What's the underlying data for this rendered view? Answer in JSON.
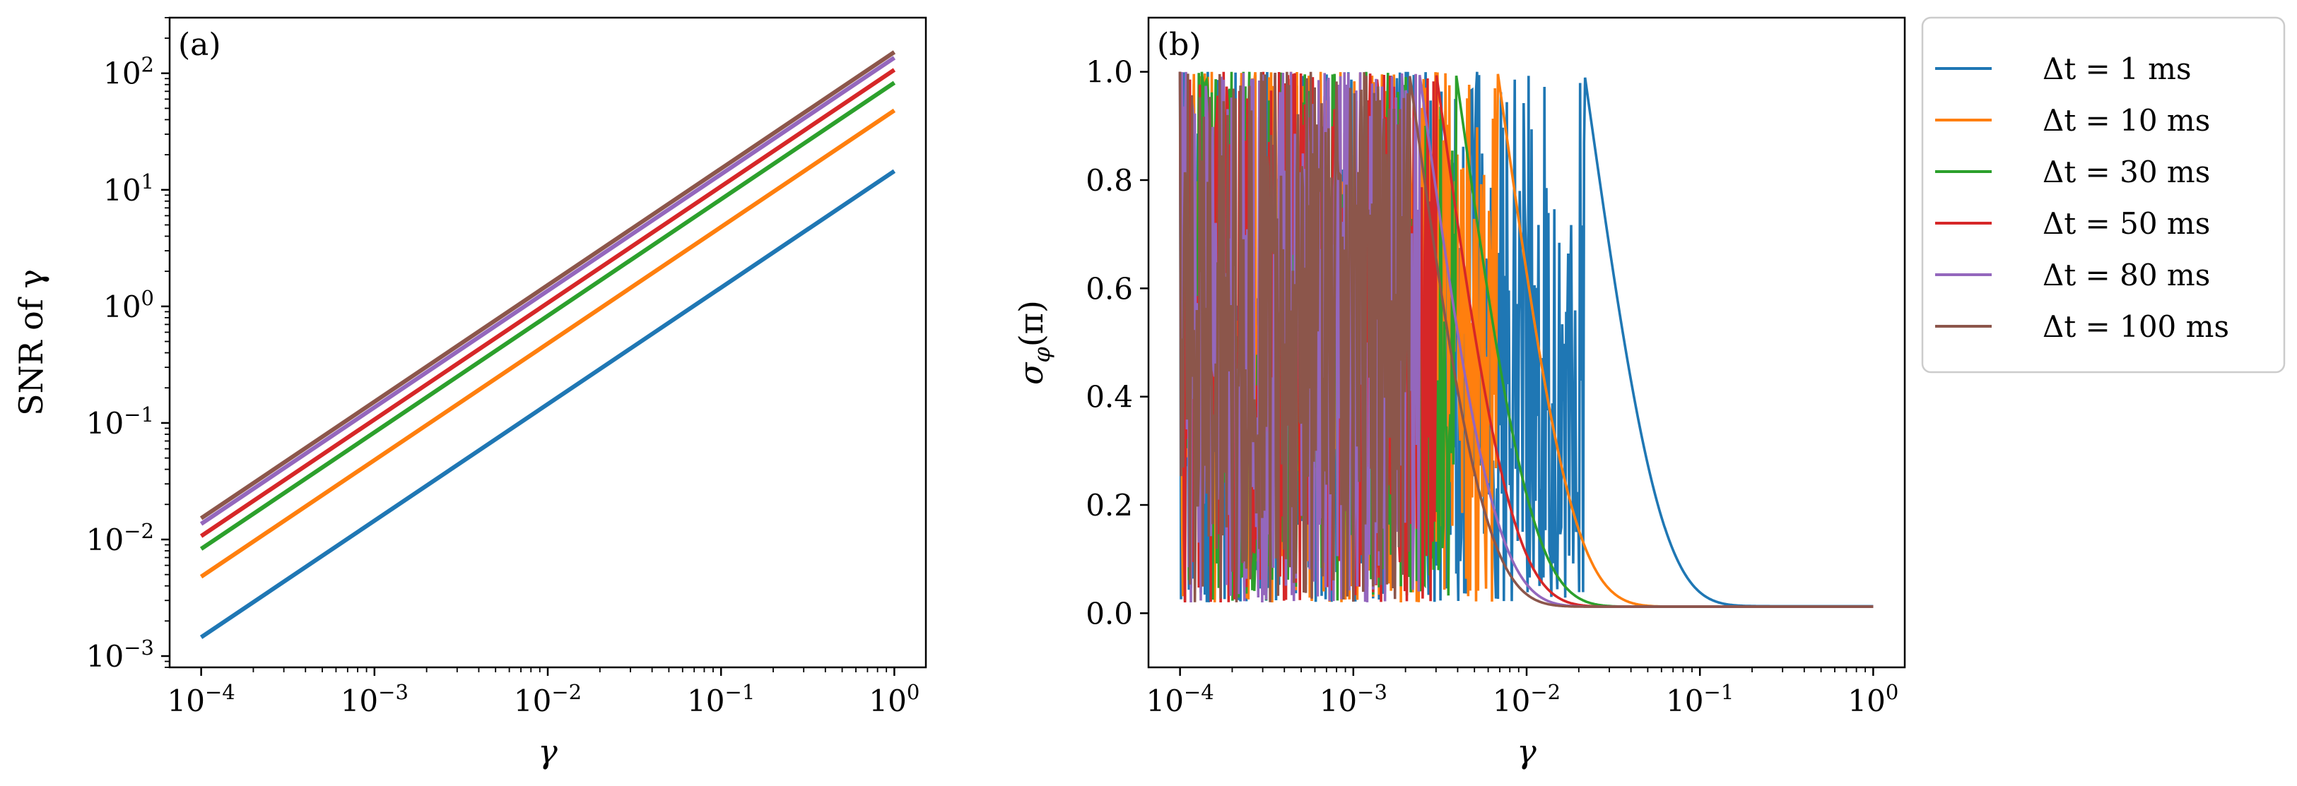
{
  "figure": {
    "colors": [
      "#1f77b4",
      "#ff7f0e",
      "#2ca02c",
      "#d62728",
      "#9467bd",
      "#8c564b"
    ]
  },
  "legend": {
    "items": [
      {
        "label": "Δt = 1 ms",
        "color": "#1f77b4"
      },
      {
        "label": "Δt = 10 ms",
        "color": "#ff7f0e"
      },
      {
        "label": "Δt = 30 ms",
        "color": "#2ca02c"
      },
      {
        "label": "Δt = 50 ms",
        "color": "#d62728"
      },
      {
        "label": "Δt = 80 ms",
        "color": "#9467bd"
      },
      {
        "label": "Δt = 100 ms",
        "color": "#8c564b"
      }
    ]
  },
  "chart_data": [
    {
      "panel": "(a)",
      "type": "line",
      "xscale": "log",
      "yscale": "log",
      "xlabel": "γ",
      "ylabel": "SNR of γ",
      "xlim": [
        0.0001,
        1
      ],
      "ylim": [
        0.0008,
        300
      ],
      "xticks": [
        {
          "base": "10",
          "exp": "−4",
          "value": 0.0001
        },
        {
          "base": "10",
          "exp": "−3",
          "value": 0.001
        },
        {
          "base": "10",
          "exp": "−2",
          "value": 0.01
        },
        {
          "base": "10",
          "exp": "−1",
          "value": 0.1
        },
        {
          "base": "10",
          "exp": "0",
          "value": 1
        }
      ],
      "yticks": [
        {
          "base": "10",
          "exp": "−3",
          "value": 0.001
        },
        {
          "base": "10",
          "exp": "−2",
          "value": 0.01
        },
        {
          "base": "10",
          "exp": "−1",
          "value": 0.1
        },
        {
          "base": "10",
          "exp": "0",
          "value": 1
        },
        {
          "base": "10",
          "exp": "1",
          "value": 10
        },
        {
          "base": "10",
          "exp": "2",
          "value": 100
        }
      ],
      "series": [
        {
          "name": "Δt = 1 ms",
          "x": [
            0.0001,
            1
          ],
          "y": [
            0.00145,
            14.5
          ]
        },
        {
          "name": "Δt = 10 ms",
          "x": [
            0.0001,
            1
          ],
          "y": [
            0.0048,
            48
          ]
        },
        {
          "name": "Δt = 30 ms",
          "x": [
            0.0001,
            1
          ],
          "y": [
            0.0083,
            83
          ]
        },
        {
          "name": "Δt = 50 ms",
          "x": [
            0.0001,
            1
          ],
          "y": [
            0.0107,
            107
          ]
        },
        {
          "name": "Δt = 80 ms",
          "x": [
            0.0001,
            1
          ],
          "y": [
            0.0136,
            136
          ]
        },
        {
          "name": "Δt = 100 ms",
          "x": [
            0.0001,
            1
          ],
          "y": [
            0.0152,
            152
          ]
        }
      ]
    },
    {
      "panel": "(b)",
      "type": "line",
      "xscale": "log",
      "yscale": "linear",
      "xlabel": "γ",
      "ylabel": "σφ(π)",
      "ylabel_main": "σ",
      "ylabel_sub": "φ",
      "ylabel_arg": "(π)",
      "xlim": [
        0.0001,
        1
      ],
      "ylim": [
        -0.1,
        1.1
      ],
      "xticks": [
        {
          "base": "10",
          "exp": "−4",
          "value": 0.0001
        },
        {
          "base": "10",
          "exp": "−3",
          "value": 0.001
        },
        {
          "base": "10",
          "exp": "−2",
          "value": 0.01
        },
        {
          "base": "10",
          "exp": "−1",
          "value": 0.1
        },
        {
          "base": "10",
          "exp": "0",
          "value": 1
        }
      ],
      "yticks": [
        {
          "label": "0.0",
          "value": 0.0
        },
        {
          "label": "0.2",
          "value": 0.2
        },
        {
          "label": "0.4",
          "value": 0.4
        },
        {
          "label": "0.6",
          "value": 0.6
        },
        {
          "label": "0.8",
          "value": 0.8
        },
        {
          "label": "1.0",
          "value": 1.0
        }
      ],
      "series": [
        {
          "name": "Δt = 1 ms",
          "model": {
            "threshold": 0.0215,
            "decay": 0.0215,
            "floor": 0.013
          }
        },
        {
          "name": "Δt = 10 ms",
          "model": {
            "threshold": 0.0068,
            "decay": 0.0068,
            "floor": 0.012
          }
        },
        {
          "name": "Δt = 30 ms",
          "model": {
            "threshold": 0.0039,
            "decay": 0.0039,
            "floor": 0.012
          }
        },
        {
          "name": "Δt = 50 ms",
          "model": {
            "threshold": 0.003,
            "decay": 0.003,
            "floor": 0.012
          }
        },
        {
          "name": "Δt = 80 ms",
          "model": {
            "threshold": 0.0024,
            "decay": 0.0024,
            "floor": 0.012
          }
        },
        {
          "name": "Δt = 100 ms",
          "model": {
            "threshold": 0.0021,
            "decay": 0.0021,
            "floor": 0.012
          }
        }
      ]
    }
  ]
}
